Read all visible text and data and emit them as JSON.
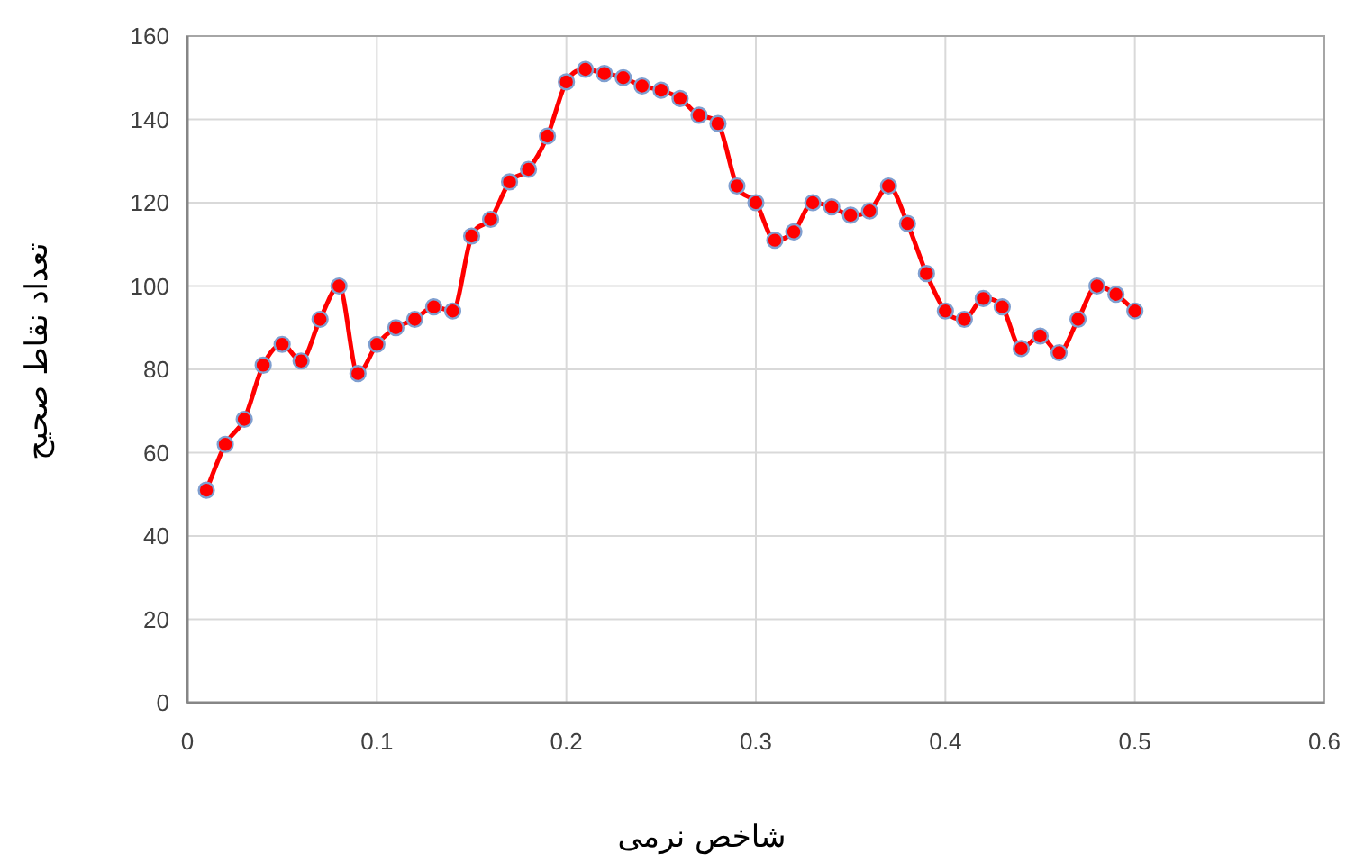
{
  "chart_data": {
    "type": "line",
    "xlabel": "شاخص نرمی",
    "ylabel": "تعداد نقاط صحیح",
    "x": [
      0.01,
      0.02,
      0.03,
      0.04,
      0.05,
      0.06,
      0.07,
      0.08,
      0.09,
      0.1,
      0.11,
      0.12,
      0.13,
      0.14,
      0.15,
      0.16,
      0.17,
      0.18,
      0.19,
      0.2,
      0.21,
      0.22,
      0.23,
      0.24,
      0.25,
      0.26,
      0.27,
      0.28,
      0.29,
      0.3,
      0.31,
      0.32,
      0.33,
      0.34,
      0.35,
      0.36,
      0.37,
      0.38,
      0.39,
      0.4,
      0.41,
      0.42,
      0.43,
      0.44,
      0.45,
      0.46,
      0.47,
      0.48,
      0.49,
      0.5
    ],
    "series": [
      {
        "color": "#ff0000",
        "values": [
          51,
          62,
          68,
          81,
          86,
          82,
          92,
          100,
          79,
          86,
          90,
          92,
          95,
          94,
          112,
          116,
          125,
          128,
          136,
          149,
          152,
          151,
          150,
          148,
          147,
          145,
          141,
          139,
          124,
          120,
          111,
          113,
          120,
          119,
          117,
          118,
          124,
          115,
          103,
          94,
          92,
          97,
          95,
          85,
          88,
          84,
          92,
          100,
          98,
          94
        ]
      }
    ],
    "xlim": [
      0,
      0.6
    ],
    "xticks": [
      0,
      0.1,
      0.2,
      0.3,
      0.4,
      0.5,
      0.6
    ],
    "ylim": [
      0,
      160
    ],
    "yticks": [
      0,
      20,
      40,
      60,
      80,
      100,
      120,
      140,
      160
    ],
    "grid": true,
    "marker": "circle",
    "line_style": "solid"
  }
}
